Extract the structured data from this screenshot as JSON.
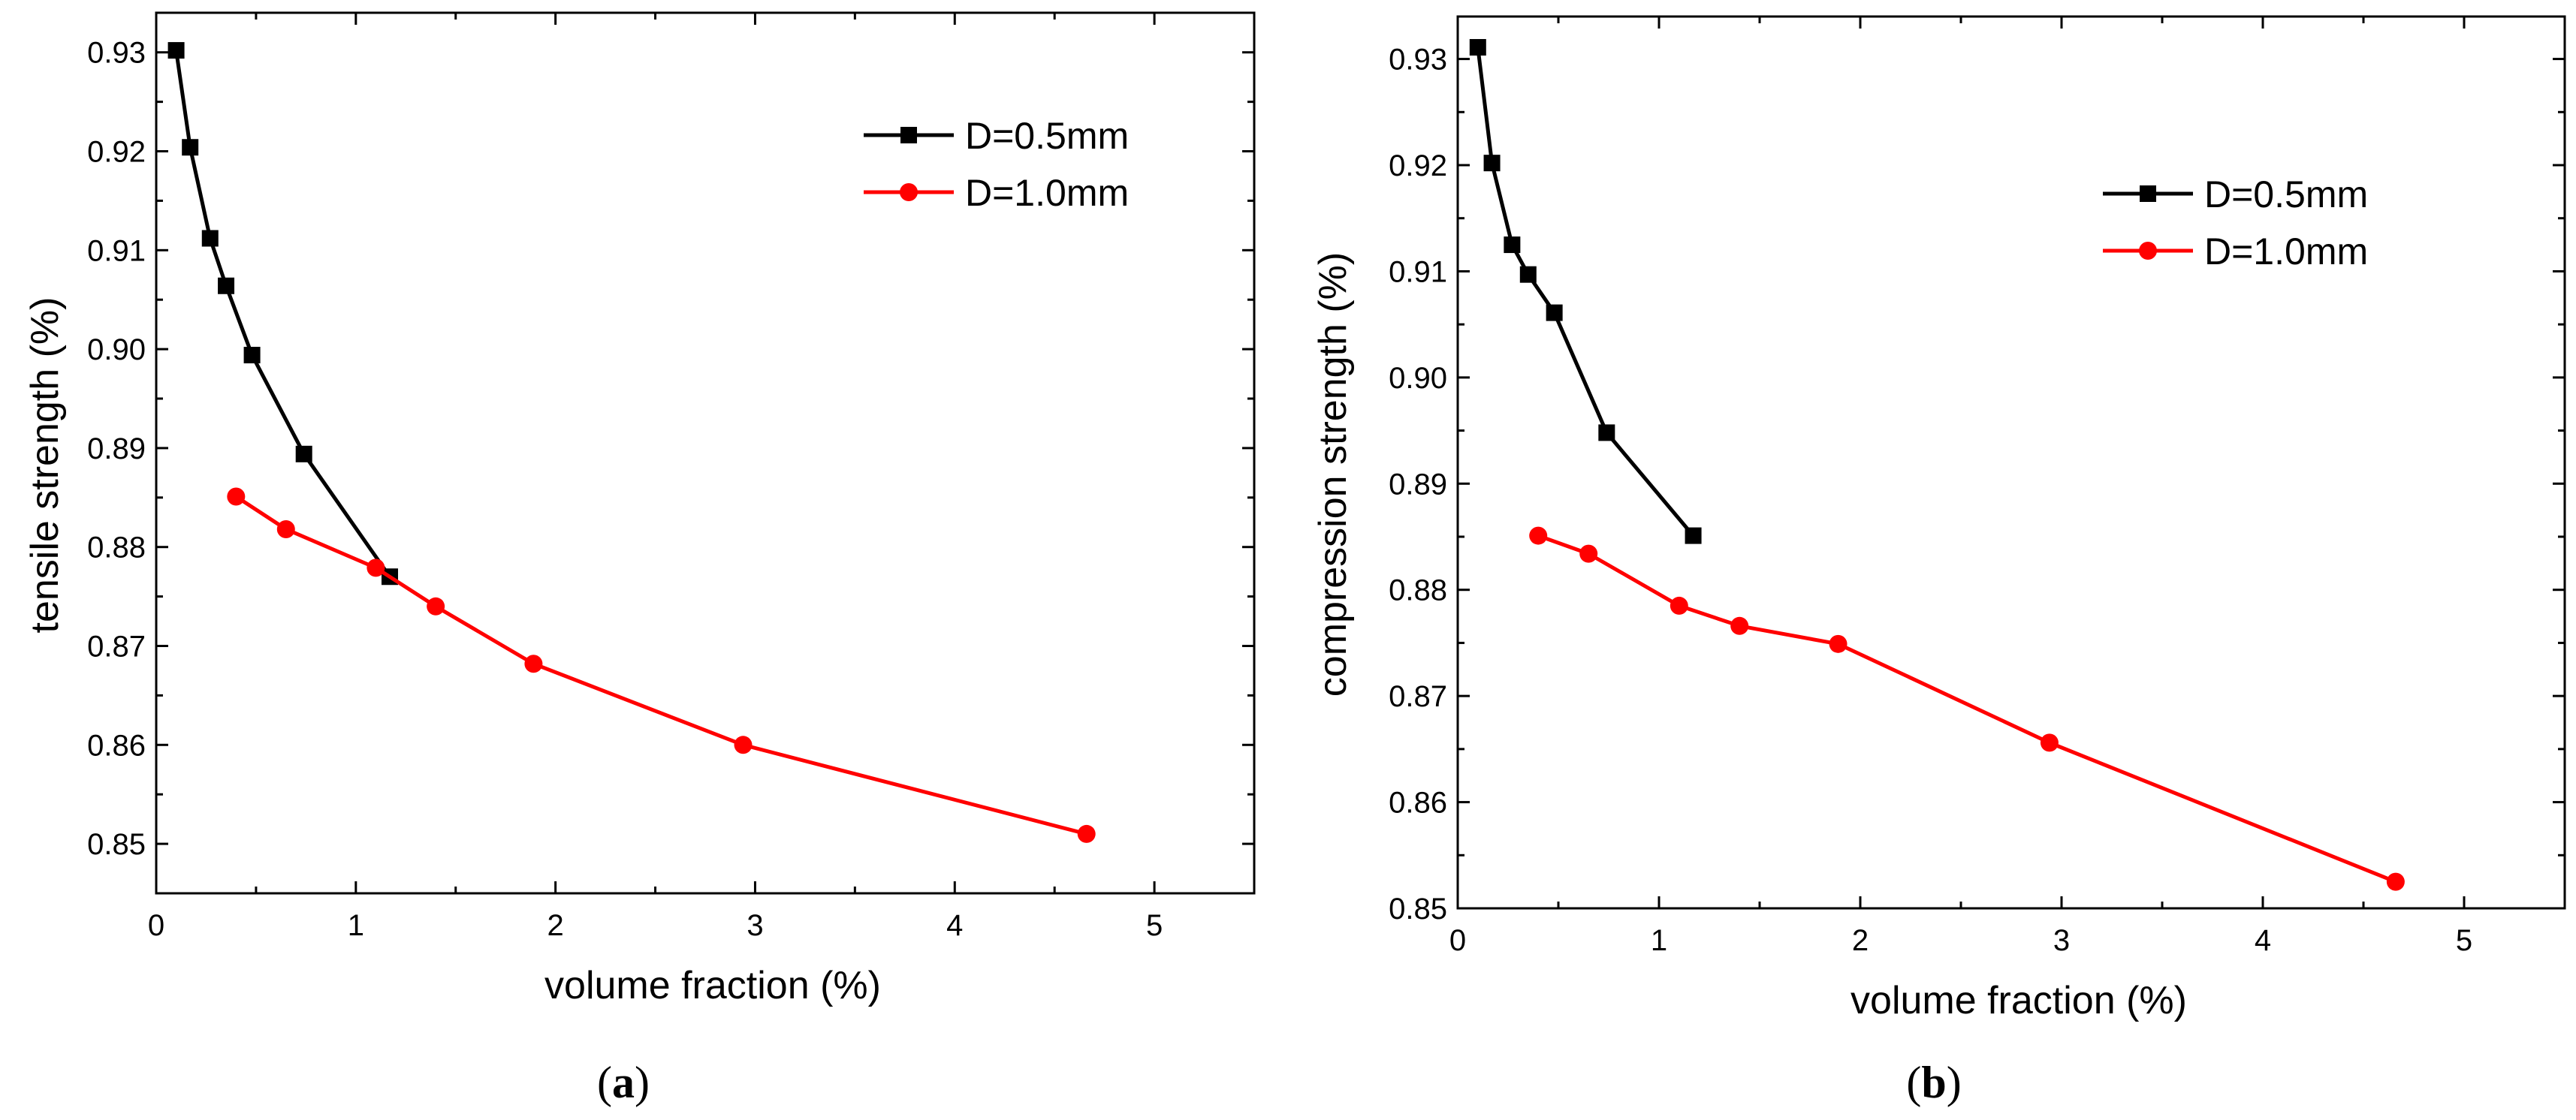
{
  "chart_data": [
    {
      "type": "line",
      "panel": "a",
      "caption_open": "(",
      "caption_letter": "a",
      "caption_close": ")",
      "xlabel": "volume fraction (%)",
      "ylabel": "tensile strength (%)",
      "xlim": [
        0,
        5.5
      ],
      "ylim": [
        0.845,
        0.934
      ],
      "xticks": [
        0,
        1,
        2,
        3,
        4,
        5
      ],
      "xtick_labels": [
        "0",
        "1",
        "2",
        "3",
        "4",
        "5"
      ],
      "yticks": [
        0.85,
        0.86,
        0.87,
        0.88,
        0.89,
        0.9,
        0.91,
        0.92,
        0.93
      ],
      "ytick_labels": [
        "0.85",
        "0.86",
        "0.87",
        "0.88",
        "0.89",
        "0.90",
        "0.91",
        "0.92",
        "0.93"
      ],
      "legend_position": "top-right",
      "series": [
        {
          "name": "D=0.5mm",
          "color": "#000000",
          "marker": "square",
          "x": [
            0.1,
            0.17,
            0.27,
            0.35,
            0.48,
            0.74,
            1.17
          ],
          "y": [
            0.9302,
            0.9204,
            0.9112,
            0.9064,
            0.8994,
            0.8894,
            0.877
          ]
        },
        {
          "name": "D=1.0mm",
          "color": "#ff0000",
          "marker": "circle",
          "x": [
            0.4,
            0.65,
            1.1,
            1.4,
            1.89,
            2.94,
            4.66
          ],
          "y": [
            0.8851,
            0.8818,
            0.8779,
            0.874,
            0.8682,
            0.86,
            0.851
          ]
        }
      ]
    },
    {
      "type": "line",
      "panel": "b",
      "caption_open": "(",
      "caption_letter": "b",
      "caption_close": ")",
      "xlabel": "volume fraction (%)",
      "ylabel": "compression strength (%)",
      "xlim": [
        0,
        5.5
      ],
      "ylim": [
        0.85,
        0.934
      ],
      "xticks": [
        0,
        1,
        2,
        3,
        4,
        5
      ],
      "xtick_labels": [
        "0",
        "1",
        "2",
        "3",
        "4",
        "5"
      ],
      "yticks": [
        0.85,
        0.86,
        0.87,
        0.88,
        0.89,
        0.9,
        0.91,
        0.92,
        0.93
      ],
      "ytick_labels": [
        "0.85",
        "0.86",
        "0.87",
        "0.88",
        "0.89",
        "0.90",
        "0.91",
        "0.92",
        "0.93"
      ],
      "legend_position": "top-right",
      "series": [
        {
          "name": "D=0.5mm",
          "color": "#000000",
          "marker": "square",
          "x": [
            0.1,
            0.17,
            0.27,
            0.35,
            0.48,
            0.74,
            1.17
          ],
          "y": [
            0.9311,
            0.9202,
            0.9125,
            0.9097,
            0.9061,
            0.8948,
            0.8851
          ]
        },
        {
          "name": "D=1.0mm",
          "color": "#ff0000",
          "marker": "circle",
          "x": [
            0.4,
            0.65,
            1.1,
            1.4,
            1.89,
            2.94,
            4.66
          ],
          "y": [
            0.8851,
            0.8834,
            0.8785,
            0.8766,
            0.8749,
            0.8656,
            0.8525
          ]
        }
      ]
    }
  ]
}
